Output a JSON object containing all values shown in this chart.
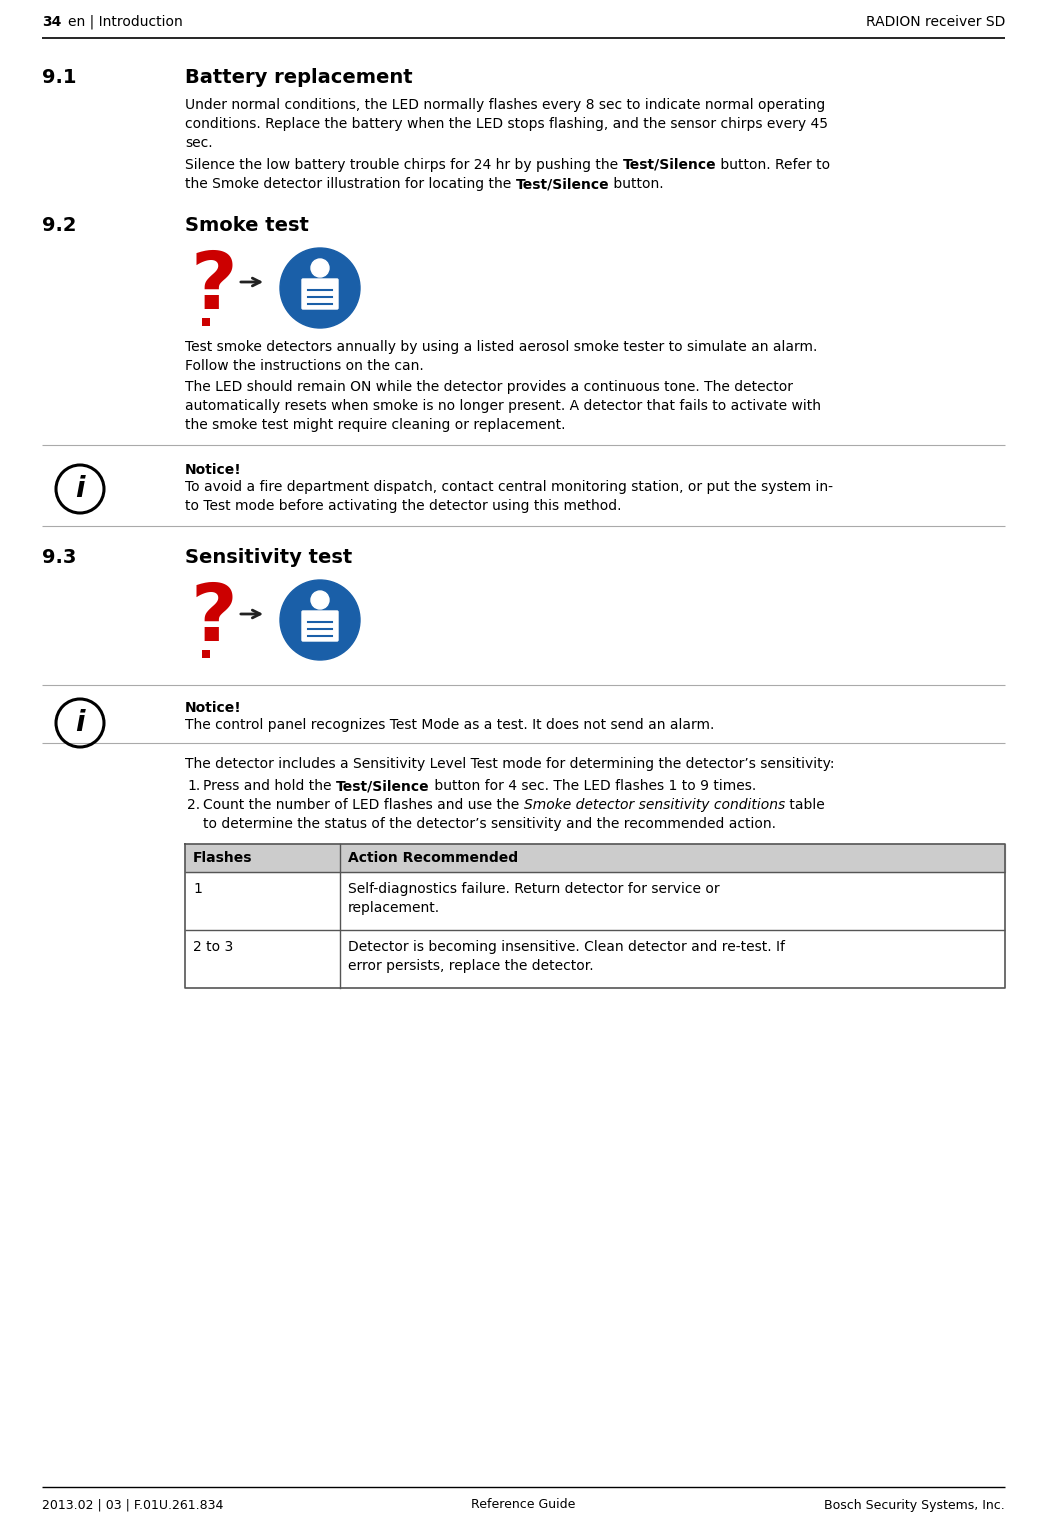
{
  "page_number": "34",
  "header_left": "en | Introduction",
  "header_right": "RADION receiver SD",
  "footer_left": "2013.02 | 03 | F.01U.261.834",
  "footer_center": "Reference Guide",
  "footer_right": "Bosch Security Systems, Inc.",
  "section_91_num": "9.1",
  "section_91_title": "Battery replacement",
  "section_92_num": "9.2",
  "section_92_title": "Smoke test",
  "section_93_num": "9.3",
  "section_93_title": "Sensitivity test",
  "notice1_title": "Notice!",
  "notice1_line1": "To avoid a fire department dispatch, contact central monitoring station, or put the system in-",
  "notice1_line2": "to Test mode before activating the detector using this method.",
  "notice2_title": "Notice!",
  "notice2_body": "The control panel recognizes Test Mode as a test. It does not send an alarm.",
  "table_header_col1": "Flashes",
  "table_header_col2": "Action Recommended",
  "table_row1_col1": "1",
  "table_row1_col2_line1": "Self-diagnostics failure. Return detector for service or",
  "table_row1_col2_line2": "replacement.",
  "table_row2_col1": "2 to 3",
  "table_row2_col2_line1": "Detector is becoming insensitive. Clean detector and re-test. If",
  "table_row2_col2_line2": "error persists, replace the detector.",
  "bg_color": "#ffffff",
  "text_color": "#000000",
  "question_mark_color": "#cc0000",
  "arrow_color": "#222222",
  "icon_circle_color": "#1a5fa8",
  "notice_circle_color": "#000000",
  "table_border_color": "#555555",
  "table_header_bg": "#cccccc",
  "separator_color": "#aaaaaa",
  "header_line_color": "#000000"
}
